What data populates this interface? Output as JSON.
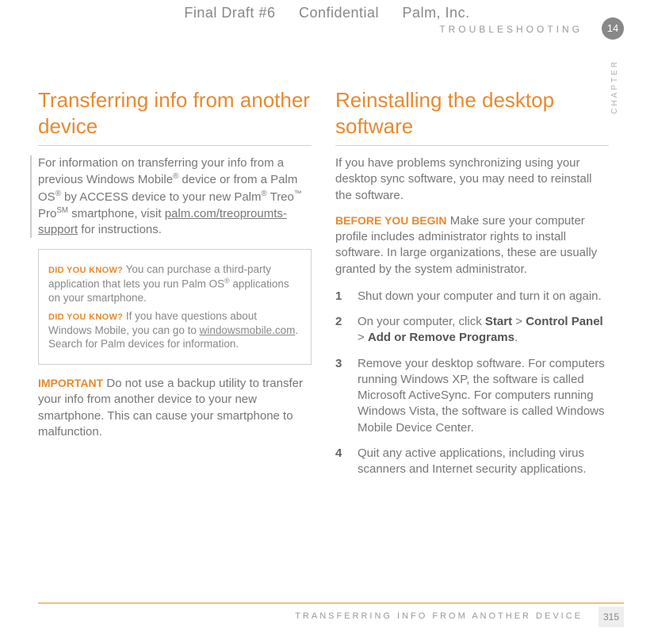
{
  "header": {
    "draft": "Final Draft #6",
    "confidential": "Confidential",
    "company": "Palm, Inc.",
    "section": "TROUBLESHOOTING",
    "chapter_num": "14",
    "chapter_label": "CHAPTER"
  },
  "left": {
    "title": "Transferring info from another device",
    "intro_a": "For information on transferring your info from a previous Windows Mobile",
    "intro_b": " device or from a Palm OS",
    "intro_c": " by ACCESS device to your new Palm",
    "intro_d": " Treo",
    "intro_e": " Pro",
    "intro_f": " smartphone, visit ",
    "intro_link": "palm.com/treoproumts-support",
    "intro_g": " for instructions.",
    "tip1_label": "DID YOU KNOW?",
    "tip1_a": " You can purchase a third-party application that lets you run Palm OS",
    "tip1_b": " applications on your smartphone.",
    "tip2_label": "DID YOU KNOW?",
    "tip2_a": " If you have questions about Windows Mobile, you can go to ",
    "tip2_link": "windowsmobile.com",
    "tip2_b": ". Search for Palm devices for information.",
    "important_label": "IMPORTANT",
    "important_text": "  Do not use a backup utility to transfer your info from another device to your new smartphone. This can cause your smartphone to malfunction."
  },
  "right": {
    "title": "Reinstalling the desktop software",
    "intro": "If you have problems synchronizing using your desktop sync software, you may need to reinstall the software.",
    "before_label": "BEFORE YOU BEGIN",
    "before_text": "  Make sure your computer profile includes administrator rights to install software. In large organizations, these are usually granted by the system administrator.",
    "step1": "Shut down your computer and turn it on again.",
    "step2_a": "On your computer, click ",
    "step2_b": "Start",
    "step2_c": " > ",
    "step2_d": "Control Panel",
    "step2_e": " > ",
    "step2_f": "Add or Remove Programs",
    "step2_g": ".",
    "step3": "Remove your desktop software. For computers running Windows XP, the software is called Microsoft ActiveSync. For computers running Windows Vista, the software is called Windows Mobile Device Center.",
    "step4": "Quit any active applications, including virus scanners and Internet security applications."
  },
  "footer": {
    "text": "TRANSFERRING INFO FROM ANOTHER DEVICE",
    "page": "315"
  },
  "colors": {
    "accent": "#e78a2e",
    "body_text": "#777777",
    "muted": "#999999"
  }
}
